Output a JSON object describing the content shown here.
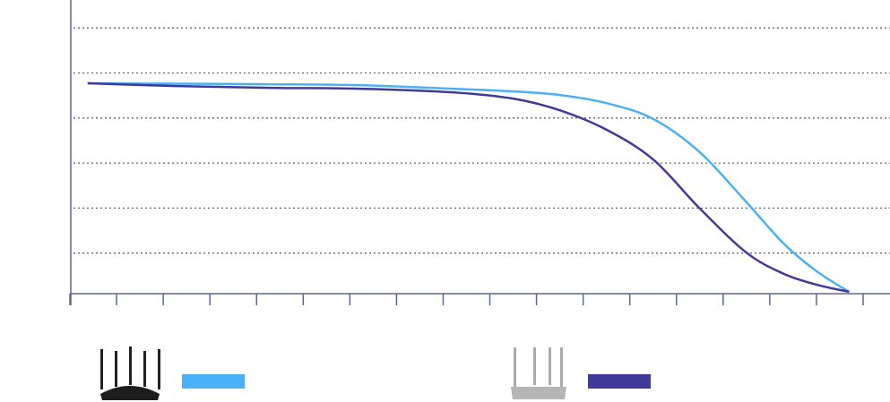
{
  "chart_data": {
    "type": "line",
    "x": [
      0.38,
      2.3,
      4.3,
      6.2,
      8.2,
      9.5,
      10.5,
      11.5,
      12.5,
      13.5,
      14.5,
      15.3,
      16,
      16.7
    ],
    "series": [
      {
        "color": "#4ab0f7",
        "values": [
          4.77,
          4.76,
          4.75,
          4.73,
          4.65,
          4.59,
          4.51,
          4.33,
          3.98,
          3.24,
          2.13,
          1.21,
          0.6,
          0.14
        ]
      },
      {
        "color": "#3f3a9a",
        "values": [
          4.77,
          4.71,
          4.67,
          4.65,
          4.57,
          4.43,
          4.17,
          3.74,
          3.08,
          1.99,
          1.01,
          0.54,
          0.3,
          0.14
        ]
      }
    ],
    "xlim": [
      0,
      17
    ],
    "xticks": [
      0,
      1,
      2,
      3,
      4,
      5,
      6,
      7,
      8,
      9,
      10,
      11,
      12,
      13,
      14,
      15,
      16,
      17
    ],
    "ylim": [
      0,
      6.62
    ],
    "yticks": [
      1,
      2,
      3,
      4,
      5,
      6
    ],
    "grid": true
  }
}
